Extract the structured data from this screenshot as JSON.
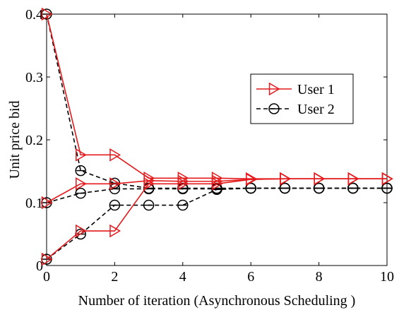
{
  "chart_data": {
    "type": "line",
    "xlabel": "Number of iteration (Asynchronous Scheduling )",
    "ylabel": "Unit price bid",
    "xlim": [
      0,
      10
    ],
    "ylim": [
      0,
      0.4
    ],
    "x_ticks": [
      0,
      2,
      4,
      6,
      8,
      10
    ],
    "y_ticks": [
      0,
      0.1,
      0.2,
      0.3,
      0.4
    ],
    "x_tick_labels": [
      "0",
      "2",
      "4",
      "6",
      "8",
      "10"
    ],
    "y_tick_labels": [
      "0",
      "0.1",
      "0.2",
      "0.3",
      "0.4"
    ],
    "grid": false,
    "legend_position": "right",
    "series": [
      {
        "name": "User 1",
        "color": "#e41a1c",
        "line_style": "solid",
        "marker": "triangle-right",
        "lines": [
          {
            "x": [
              0,
              1,
              2,
              3,
              4,
              5,
              6,
              7,
              8,
              9,
              10
            ],
            "y": [
              0.4,
              0.176,
              0.176,
              0.139,
              0.139,
              0.139,
              0.138,
              0.138,
              0.138,
              0.138,
              0.138
            ]
          },
          {
            "x": [
              0,
              1,
              2,
              3,
              4,
              5,
              6,
              7,
              8,
              9,
              10
            ],
            "y": [
              0.1,
              0.13,
              0.13,
              0.135,
              0.134,
              0.134,
              0.137,
              0.138,
              0.138,
              0.138,
              0.138
            ]
          },
          {
            "x": [
              0,
              1,
              2,
              3,
              4,
              5,
              6,
              7,
              8,
              9,
              10
            ],
            "y": [
              0.01,
              0.055,
              0.055,
              0.13,
              0.13,
              0.13,
              0.137,
              0.138,
              0.138,
              0.138,
              0.138
            ]
          }
        ]
      },
      {
        "name": "User 2",
        "color": "#000000",
        "line_style": "dashed",
        "marker": "circle-bar",
        "lines": [
          {
            "x": [
              0,
              1,
              2,
              3,
              4,
              5,
              6,
              7,
              8,
              9,
              10
            ],
            "y": [
              0.4,
              0.151,
              0.131,
              0.123,
              0.123,
              0.123,
              0.123,
              0.123,
              0.123,
              0.123,
              0.123
            ]
          },
          {
            "x": [
              0,
              1,
              2,
              3,
              4,
              5,
              6,
              7,
              8,
              9,
              10
            ],
            "y": [
              0.1,
              0.115,
              0.122,
              0.122,
              0.122,
              0.122,
              0.123,
              0.123,
              0.123,
              0.123,
              0.123
            ]
          },
          {
            "x": [
              0,
              1,
              2,
              3,
              4,
              5,
              6,
              7,
              8,
              9,
              10
            ],
            "y": [
              0.01,
              0.05,
              0.096,
              0.096,
              0.096,
              0.121,
              0.123,
              0.123,
              0.123,
              0.123,
              0.123
            ]
          }
        ]
      }
    ]
  }
}
